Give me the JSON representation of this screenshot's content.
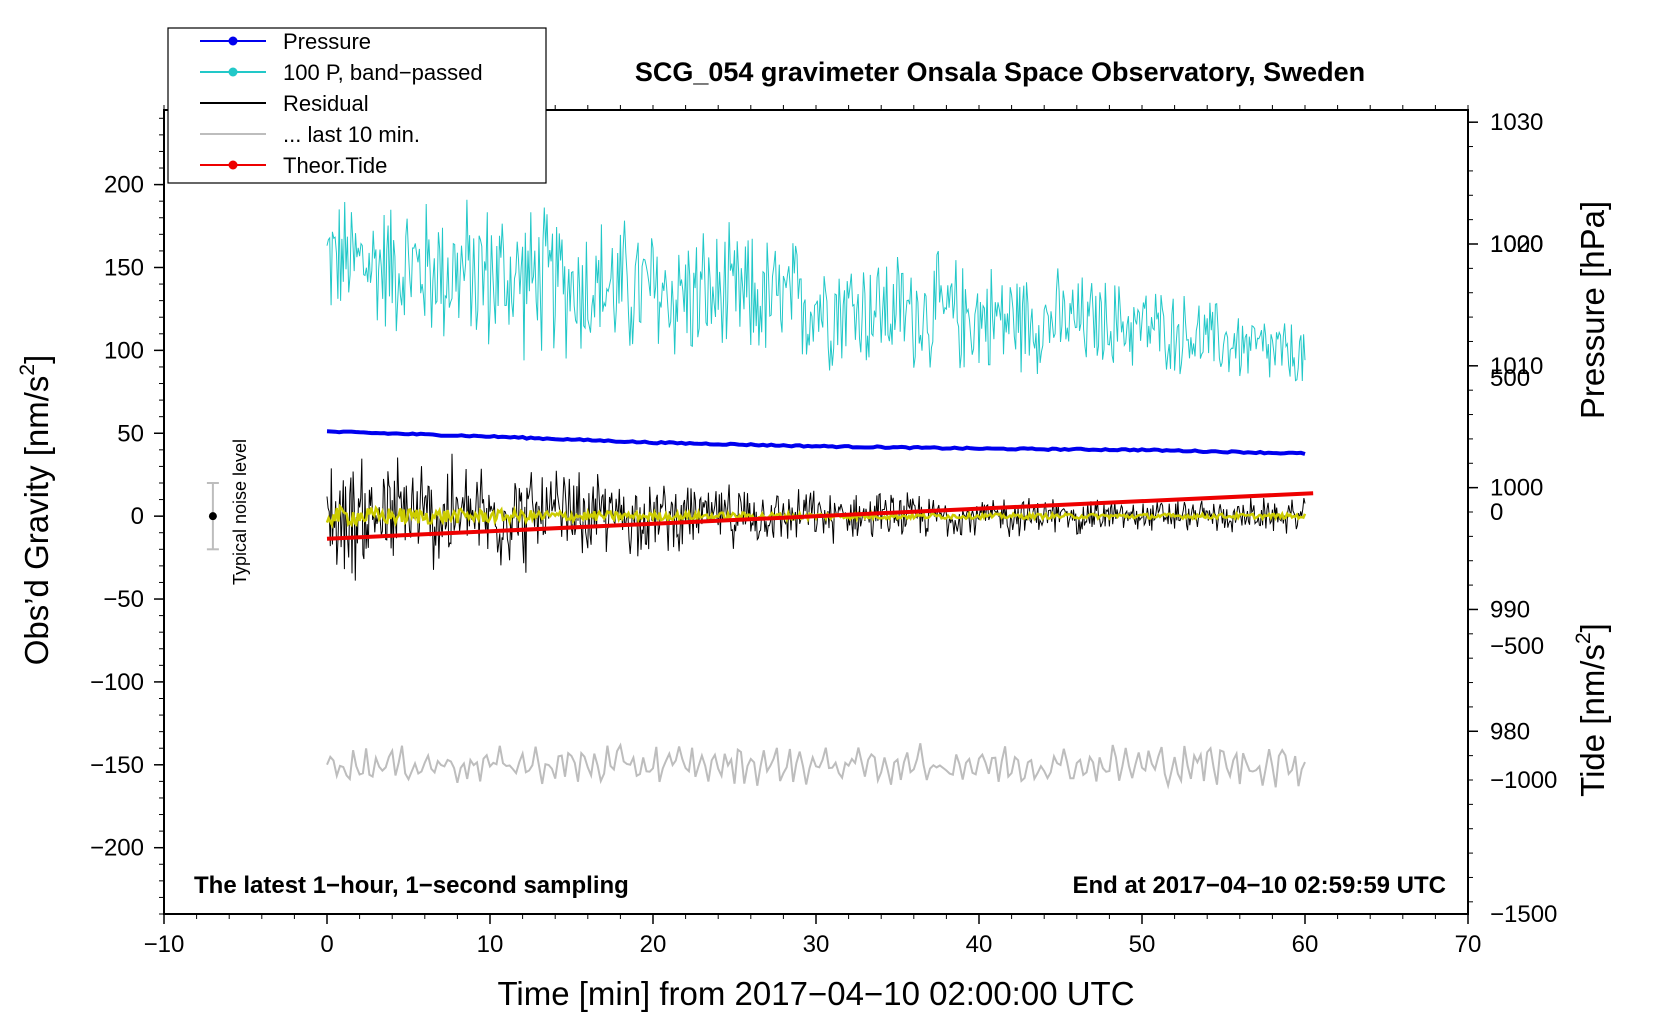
{
  "chart_data": {
    "type": "line",
    "title": "SCG_054 gravimeter Onsala Space Observatory, Sweden",
    "xlabel": "Time [min] from 2017−04−10 02:00:00 UTC",
    "ylabel_left": "Obs’d Gravity [nm/s",
    "ylabel_left_sup": "2",
    "ylabel_left_end": "]",
    "ylabel_right_pressure": "Pressure [hPa]",
    "ylabel_right_tide": "Tide [nm/s",
    "ylabel_right_tide_sup": "2",
    "ylabel_right_tide_end": "]",
    "xlim": [
      -10,
      70
    ],
    "ylim_left": [
      -240,
      245
    ],
    "ylim_pressure": [
      965,
      1031
    ],
    "ylim_tide": [
      -1500,
      1500
    ],
    "x_ticks": [
      -10,
      0,
      10,
      20,
      30,
      40,
      50,
      60,
      70
    ],
    "x_tick_labels": [
      "−10",
      "0",
      "10",
      "20",
      "30",
      "40",
      "50",
      "60",
      "70"
    ],
    "y_left_ticks": [
      200,
      150,
      100,
      50,
      0,
      -50,
      -100,
      -150,
      -200
    ],
    "y_left_tick_labels": [
      "200",
      "150",
      "100",
      "50",
      "0",
      "−50",
      "−100",
      "−150",
      "−200"
    ],
    "pressure_ticks": [
      1030,
      1020,
      1010,
      1000,
      990,
      980
    ],
    "pressure_tick_labels": [
      "1030",
      "1020",
      "1010",
      "1000",
      "990",
      "980"
    ],
    "tide_ticks": [
      1000,
      500,
      0,
      -500,
      -1000,
      -1500
    ],
    "tide_tick_labels": [
      "1000",
      "500",
      "0",
      "−500",
      "−1000",
      "−1500"
    ],
    "legend": [
      {
        "label": "Pressure",
        "color": "#0000ee",
        "marker": true
      },
      {
        "label": "100 P, band−passed",
        "color": "#22c8c8",
        "marker": true
      },
      {
        "label": "Residual",
        "color": "#000000",
        "marker": false
      },
      {
        "label": "... last 10 min.",
        "color": "#bdbdbd",
        "marker": false
      },
      {
        "label": "Theor.Tide",
        "color": "#ee0000",
        "marker": true
      }
    ],
    "series": [
      {
        "name": "Pressure",
        "axis": "pressure",
        "color": "#0000ee",
        "x": [
          0,
          10,
          20,
          30,
          40,
          50,
          60
        ],
        "values": [
          1004.6,
          1004.2,
          1003.7,
          1003.4,
          1003.2,
          1003.1,
          1002.8
        ]
      },
      {
        "name": "100 P, band−passed",
        "axis": "left",
        "color": "#22c8c8",
        "x": [
          0,
          10,
          20,
          30,
          40,
          50,
          60
        ],
        "values_mean": [
          155,
          145,
          135,
          128,
          120,
          115,
          95
        ],
        "values_amp": [
          45,
          55,
          50,
          45,
          40,
          30,
          25
        ]
      },
      {
        "name": "Residual",
        "axis": "left",
        "color": "#000000",
        "x": [
          0,
          10,
          20,
          30,
          40,
          50,
          60
        ],
        "values_mean": [
          0,
          0,
          0,
          0,
          0,
          0,
          0
        ],
        "values_amp": [
          45,
          40,
          25,
          18,
          15,
          12,
          12
        ]
      },
      {
        "name": "Residual smoothed",
        "axis": "left",
        "color": "#cccc00",
        "x": [
          0,
          10,
          20,
          30,
          40,
          50,
          60
        ],
        "values_mean": [
          0,
          0,
          0,
          0,
          0,
          0,
          0
        ],
        "values_amp": [
          6,
          4,
          2.5,
          2,
          1.5,
          1.5,
          1.5
        ]
      },
      {
        "name": "... last 10 min.",
        "axis": "left",
        "color": "#bdbdbd",
        "x": [
          0,
          10,
          20,
          30,
          40,
          50,
          60
        ],
        "values_mean": [
          -150,
          -150,
          -150,
          -150,
          -150,
          -150,
          -150
        ],
        "values_amp": [
          8,
          10,
          10,
          10,
          10,
          10,
          12
        ]
      },
      {
        "name": "Theor.Tide",
        "axis": "tide",
        "color": "#ee0000",
        "x": [
          0,
          60.5
        ],
        "values": [
          -100,
          70
        ]
      }
    ],
    "noise_level": {
      "label": "Typical noise level",
      "x": -7,
      "center": 0,
      "range": [
        -20,
        20
      ]
    },
    "annotation_left": "The latest 1−hour, 1−second sampling",
    "annotation_right": "End at 2017−04−10 02:59:59 UTC"
  }
}
